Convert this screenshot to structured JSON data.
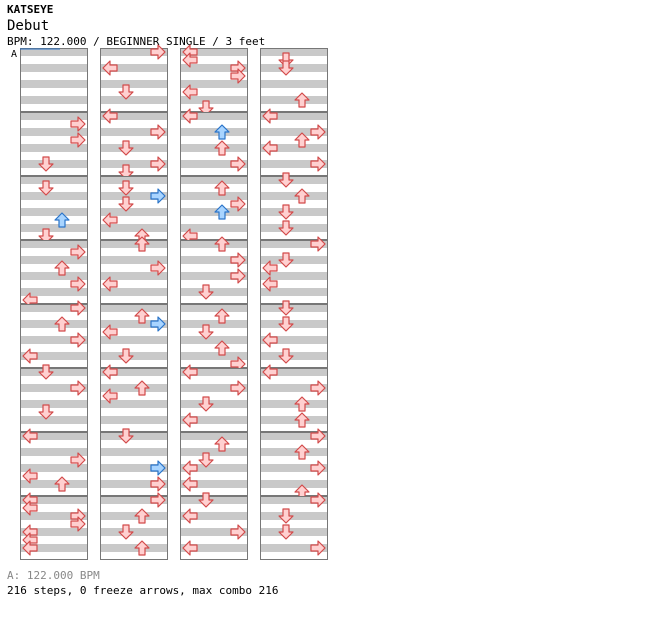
{
  "song": {
    "artist": "KATSEYE",
    "title": "Debut",
    "info": "BPM: 122.000 / BEGINNER SINGLE / 3 feet"
  },
  "marker": "A",
  "footer": {
    "bpm_line": "A: 122.000 BPM",
    "stats": "216 steps, 0 freeze arrows, max combo 216"
  },
  "colors": {
    "red_fill": "#ffd0d0",
    "red_stroke": "#d24a4a",
    "blue_fill": "#a8d4ff",
    "blue_stroke": "#2a74c9",
    "stripe": "#c9c9c9"
  },
  "chart_data": {
    "type": "table",
    "lanes": [
      "left",
      "down",
      "up",
      "right"
    ],
    "rows_per_measure": 8,
    "measures": [
      {
        "n": 0,
        "arrows": []
      },
      {
        "n": 1,
        "arrows": [
          [
            1,
            3,
            "red"
          ],
          [
            3,
            3,
            "red"
          ],
          [
            6,
            1,
            "red"
          ]
        ]
      },
      {
        "n": 2,
        "arrows": [
          [
            1,
            1,
            "red"
          ],
          [
            5,
            2,
            "blue"
          ],
          [
            7,
            1,
            "red"
          ]
        ]
      },
      {
        "n": 3,
        "arrows": [
          [
            1,
            3,
            "red"
          ],
          [
            3,
            2,
            "red"
          ],
          [
            5,
            3,
            "red"
          ],
          [
            7,
            0,
            "red"
          ]
        ]
      },
      {
        "n": 4,
        "arrows": [
          [
            0,
            3,
            "red"
          ],
          [
            2,
            2,
            "red"
          ],
          [
            4,
            3,
            "red"
          ],
          [
            6,
            0,
            "red"
          ]
        ]
      },
      {
        "n": 5,
        "arrows": [
          [
            0,
            1,
            "red"
          ],
          [
            2,
            3,
            "red"
          ],
          [
            5,
            1,
            "red"
          ]
        ]
      },
      {
        "n": 6,
        "arrows": [
          [
            0,
            0,
            "red"
          ],
          [
            3,
            3,
            "red"
          ],
          [
            5,
            0,
            "red"
          ],
          [
            6,
            2,
            "red"
          ]
        ]
      },
      {
        "n": 7,
        "arrows": [
          [
            0,
            0,
            "red"
          ],
          [
            1,
            0,
            "red"
          ],
          [
            2,
            3,
            "red"
          ],
          [
            3,
            3,
            "red"
          ],
          [
            4,
            0,
            "red"
          ],
          [
            5,
            0,
            "red"
          ],
          [
            6,
            0,
            "red"
          ]
        ]
      },
      {
        "n": 8,
        "arrows": [
          [
            0,
            3,
            "red"
          ],
          [
            2,
            0,
            "red"
          ],
          [
            5,
            1,
            "red"
          ]
        ]
      },
      {
        "n": 9,
        "arrows": [
          [
            0,
            0,
            "red"
          ],
          [
            2,
            3,
            "red"
          ],
          [
            4,
            1,
            "red"
          ],
          [
            6,
            3,
            "red"
          ],
          [
            7,
            1,
            "red"
          ]
        ]
      },
      {
        "n": 10,
        "arrows": [
          [
            1,
            1,
            "red"
          ],
          [
            2,
            3,
            "blue"
          ],
          [
            3,
            1,
            "red"
          ],
          [
            5,
            0,
            "red"
          ],
          [
            7,
            2,
            "red"
          ]
        ]
      },
      {
        "n": 11,
        "arrows": [
          [
            0,
            2,
            "red"
          ],
          [
            3,
            3,
            "red"
          ],
          [
            5,
            0,
            "red"
          ]
        ]
      },
      {
        "n": 12,
        "arrows": [
          [
            1,
            2,
            "red"
          ],
          [
            2,
            3,
            "blue"
          ],
          [
            3,
            0,
            "red"
          ],
          [
            6,
            1,
            "red"
          ]
        ]
      },
      {
        "n": 13,
        "arrows": [
          [
            0,
            0,
            "red"
          ],
          [
            2,
            2,
            "red"
          ],
          [
            3,
            0,
            "red"
          ]
        ]
      },
      {
        "n": 14,
        "arrows": [
          [
            0,
            1,
            "red"
          ],
          [
            4,
            3,
            "blue"
          ],
          [
            6,
            3,
            "red"
          ]
        ]
      },
      {
        "n": 15,
        "arrows": [
          [
            0,
            3,
            "red"
          ],
          [
            2,
            2,
            "red"
          ],
          [
            4,
            1,
            "red"
          ],
          [
            6,
            2,
            "red"
          ]
        ]
      },
      {
        "n": 16,
        "arrows": [
          [
            0,
            0,
            "red"
          ],
          [
            1,
            0,
            "red"
          ],
          [
            2,
            3,
            "red"
          ],
          [
            3,
            3,
            "red"
          ],
          [
            5,
            0,
            "red"
          ],
          [
            7,
            1,
            "red"
          ]
        ]
      },
      {
        "n": 17,
        "arrows": [
          [
            0,
            0,
            "red"
          ],
          [
            2,
            2,
            "blue"
          ],
          [
            4,
            2,
            "red"
          ],
          [
            6,
            3,
            "red"
          ]
        ]
      },
      {
        "n": 18,
        "arrows": [
          [
            1,
            2,
            "red"
          ],
          [
            3,
            3,
            "red"
          ],
          [
            4,
            2,
            "blue"
          ],
          [
            7,
            0,
            "red"
          ]
        ]
      },
      {
        "n": 19,
        "arrows": [
          [
            0,
            2,
            "red"
          ],
          [
            2,
            3,
            "red"
          ],
          [
            4,
            3,
            "red"
          ],
          [
            6,
            1,
            "red"
          ]
        ]
      },
      {
        "n": 20,
        "arrows": [
          [
            1,
            2,
            "red"
          ],
          [
            3,
            1,
            "red"
          ],
          [
            5,
            2,
            "red"
          ],
          [
            7,
            3,
            "red"
          ]
        ]
      },
      {
        "n": 21,
        "arrows": [
          [
            0,
            0,
            "red"
          ],
          [
            2,
            3,
            "red"
          ],
          [
            4,
            1,
            "red"
          ],
          [
            6,
            0,
            "red"
          ]
        ]
      },
      {
        "n": 22,
        "arrows": [
          [
            1,
            2,
            "red"
          ],
          [
            3,
            1,
            "red"
          ],
          [
            4,
            0,
            "red"
          ],
          [
            6,
            0,
            "red"
          ]
        ]
      },
      {
        "n": 23,
        "arrows": [
          [
            0,
            1,
            "red"
          ],
          [
            2,
            0,
            "red"
          ],
          [
            4,
            3,
            "red"
          ],
          [
            6,
            0,
            "red"
          ]
        ]
      },
      {
        "n": 24,
        "arrows": [
          [
            1,
            1,
            "red"
          ],
          [
            2,
            1,
            "red"
          ],
          [
            6,
            2,
            "red"
          ]
        ]
      },
      {
        "n": 25,
        "arrows": [
          [
            0,
            0,
            "red"
          ],
          [
            2,
            3,
            "red"
          ],
          [
            3,
            2,
            "red"
          ],
          [
            4,
            0,
            "red"
          ],
          [
            6,
            3,
            "red"
          ]
        ]
      },
      {
        "n": 26,
        "arrows": [
          [
            0,
            1,
            "red"
          ],
          [
            2,
            2,
            "red"
          ],
          [
            4,
            1,
            "red"
          ],
          [
            6,
            1,
            "red"
          ]
        ]
      },
      {
        "n": 27,
        "arrows": [
          [
            0,
            3,
            "red"
          ],
          [
            2,
            1,
            "red"
          ],
          [
            3,
            0,
            "red"
          ],
          [
            5,
            0,
            "red"
          ]
        ]
      },
      {
        "n": 28,
        "arrows": [
          [
            0,
            1,
            "red"
          ],
          [
            2,
            1,
            "red"
          ],
          [
            4,
            0,
            "red"
          ],
          [
            6,
            1,
            "red"
          ]
        ]
      },
      {
        "n": 29,
        "arrows": [
          [
            0,
            0,
            "red"
          ],
          [
            2,
            3,
            "red"
          ],
          [
            4,
            2,
            "red"
          ],
          [
            6,
            2,
            "red"
          ]
        ]
      },
      {
        "n": 30,
        "arrows": [
          [
            0,
            3,
            "red"
          ],
          [
            2,
            2,
            "red"
          ],
          [
            4,
            3,
            "red"
          ],
          [
            7,
            2,
            "red"
          ]
        ]
      },
      {
        "n": 31,
        "arrows": [
          [
            0,
            3,
            "red"
          ],
          [
            2,
            1,
            "red"
          ],
          [
            4,
            1,
            "red"
          ],
          [
            6,
            3,
            "red"
          ]
        ]
      }
    ]
  }
}
